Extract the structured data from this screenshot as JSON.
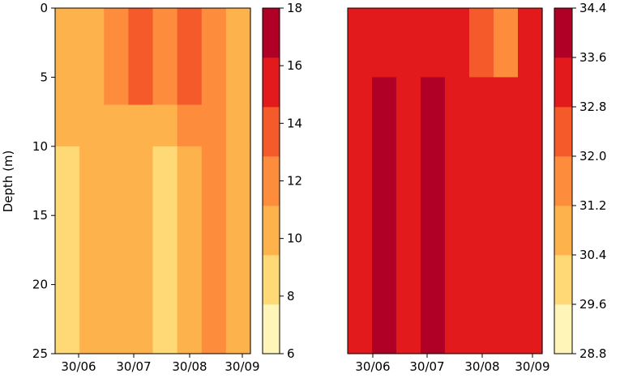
{
  "chart_data": [
    {
      "type": "heatmap",
      "panel": "left",
      "ylabel": "Depth (m)",
      "ylim": [
        25,
        0
      ],
      "yticks": [
        0,
        5,
        10,
        15,
        20,
        25
      ],
      "xticks": [
        "30/06",
        "30/07",
        "30/08",
        "30/09"
      ],
      "depth_edges": [
        0,
        7,
        10,
        25
      ],
      "column_values": [
        [
          11,
          11,
          9
        ],
        [
          11,
          11,
          10
        ],
        [
          13,
          11,
          10
        ],
        [
          15,
          11,
          10
        ],
        [
          13,
          11,
          9
        ],
        [
          15,
          13,
          11
        ],
        [
          13,
          13,
          13
        ],
        [
          11,
          11,
          11
        ]
      ],
      "colorbar": {
        "levels": [
          6,
          8,
          10,
          12,
          14,
          16,
          18
        ],
        "colors": [
          "#fff5b8",
          "#fed976",
          "#feb24c",
          "#fd8d3c",
          "#f45a2a",
          "#e31a1c",
          "#b10026"
        ],
        "ticks": [
          "18",
          "16",
          "14",
          "12",
          "10",
          "8",
          "6"
        ]
      }
    },
    {
      "type": "heatmap",
      "panel": "right",
      "ylim": [
        25,
        0
      ],
      "xticks": [
        "30/06",
        "30/07",
        "30/08",
        "30/09"
      ],
      "depth_edges": [
        0,
        5,
        25
      ],
      "column_values": [
        [
          33.2,
          33.2
        ],
        [
          33.2,
          34.0
        ],
        [
          33.2,
          33.2
        ],
        [
          33.2,
          34.0
        ],
        [
          33.2,
          33.2
        ],
        [
          32.4,
          33.2
        ],
        [
          31.6,
          33.2
        ],
        [
          33.2,
          33.2
        ]
      ],
      "colorbar": {
        "levels": [
          28.8,
          29.6,
          30.4,
          31.2,
          32.0,
          32.8,
          33.6,
          34.4
        ],
        "colors": [
          "#fff5b8",
          "#fed976",
          "#feb24c",
          "#fd8d3c",
          "#f45a2a",
          "#e31a1c",
          "#b10026"
        ],
        "ticks": [
          "34.4",
          "33.6",
          "32.8",
          "32.0",
          "31.2",
          "30.4",
          "29.6",
          "28.8"
        ]
      }
    }
  ]
}
